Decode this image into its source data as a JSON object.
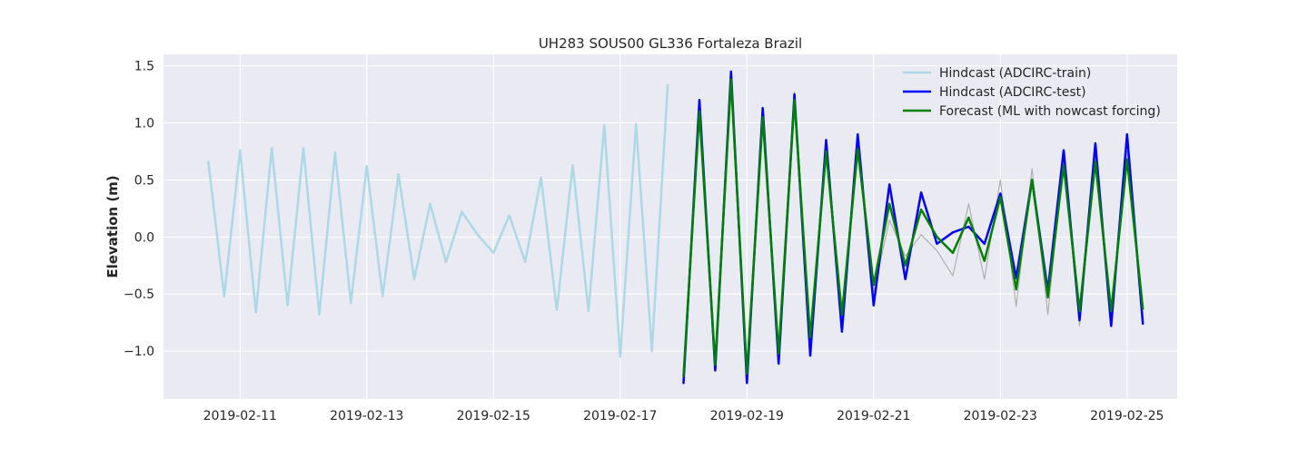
{
  "chart_data": {
    "type": "line",
    "title": "UH283 SOUS00 GL336 Fortaleza Brazil",
    "xlabel": "",
    "ylabel": "Elevation (m)",
    "xlim": [
      "2019-02-09 19:00",
      "2019-02-25 19:00"
    ],
    "ylim": [
      -1.42,
      1.6
    ],
    "x_ticks": [
      "2019-02-11",
      "2019-02-13",
      "2019-02-15",
      "2019-02-17",
      "2019-02-19",
      "2019-02-21",
      "2019-02-23",
      "2019-02-25"
    ],
    "y_ticks": [
      -1.0,
      -0.5,
      0.0,
      0.5,
      1.0,
      1.5
    ],
    "y_tick_labels": [
      "−1.0",
      "−0.5",
      "0.0",
      "0.5",
      "1.0",
      "1.5"
    ],
    "grid": true,
    "legend_position": "top-right",
    "series": [
      {
        "name": "Hindcast (ADCIRC-train)",
        "color": "#add8e6",
        "x": [
          "2019-02-10 12:00",
          "2019-02-10 18:00",
          "2019-02-11 00:00",
          "2019-02-11 06:00",
          "2019-02-11 12:00",
          "2019-02-11 18:00",
          "2019-02-12 00:00",
          "2019-02-12 06:00",
          "2019-02-12 12:00",
          "2019-02-12 18:00",
          "2019-02-13 00:00",
          "2019-02-13 06:00",
          "2019-02-13 12:00",
          "2019-02-13 18:00",
          "2019-02-14 00:00",
          "2019-02-14 06:00",
          "2019-02-14 12:00",
          "2019-02-14 18:00",
          "2019-02-15 00:00",
          "2019-02-15 06:00",
          "2019-02-15 12:00",
          "2019-02-15 18:00",
          "2019-02-16 00:00",
          "2019-02-16 06:00",
          "2019-02-16 12:00",
          "2019-02-16 18:00",
          "2019-02-17 00:00",
          "2019-02-17 06:00",
          "2019-02-17 12:00",
          "2019-02-17 18:00"
        ],
        "values": [
          0.66,
          -0.52,
          0.76,
          -0.66,
          0.78,
          -0.6,
          0.78,
          -0.68,
          0.74,
          -0.58,
          0.62,
          -0.52,
          0.55,
          -0.37,
          0.29,
          -0.22,
          0.22,
          0.02,
          -0.14,
          0.19,
          -0.22,
          0.52,
          -0.64,
          0.63,
          -0.65,
          0.98,
          -1.05,
          0.99,
          -1.0,
          1.33
        ]
      },
      {
        "name": "Hindcast (ADCIRC-test)",
        "color": "#0000ff",
        "x": [
          "2019-02-18 00:00",
          "2019-02-18 06:00",
          "2019-02-18 12:00",
          "2019-02-18 18:00",
          "2019-02-19 00:00",
          "2019-02-19 06:00",
          "2019-02-19 12:00",
          "2019-02-19 18:00",
          "2019-02-20 00:00",
          "2019-02-20 06:00",
          "2019-02-20 12:00",
          "2019-02-20 18:00",
          "2019-02-21 00:00",
          "2019-02-21 06:00",
          "2019-02-21 12:00",
          "2019-02-21 18:00",
          "2019-02-22 00:00",
          "2019-02-22 06:00",
          "2019-02-22 12:00",
          "2019-02-22 18:00",
          "2019-02-23 00:00",
          "2019-02-23 06:00",
          "2019-02-23 12:00",
          "2019-02-23 18:00",
          "2019-02-24 00:00",
          "2019-02-24 06:00",
          "2019-02-24 12:00",
          "2019-02-24 18:00",
          "2019-02-25 00:00",
          "2019-02-25 06:00"
        ],
        "values": [
          -1.28,
          1.2,
          -1.17,
          1.45,
          -1.28,
          1.13,
          -1.11,
          1.25,
          -1.04,
          0.85,
          -0.83,
          0.9,
          -0.6,
          0.46,
          -0.37,
          0.39,
          -0.06,
          0.04,
          0.09,
          -0.06,
          0.38,
          -0.36,
          0.5,
          -0.47,
          0.76,
          -0.73,
          0.82,
          -0.78,
          0.9,
          -0.76
        ]
      },
      {
        "name": "Forecast (ML with nowcast forcing)",
        "color": "#008000",
        "x": [
          "2019-02-18 00:00",
          "2019-02-18 06:00",
          "2019-02-18 12:00",
          "2019-02-18 18:00",
          "2019-02-19 00:00",
          "2019-02-19 06:00",
          "2019-02-19 12:00",
          "2019-02-19 18:00",
          "2019-02-20 00:00",
          "2019-02-20 06:00",
          "2019-02-20 12:00",
          "2019-02-20 18:00",
          "2019-02-21 00:00",
          "2019-02-21 06:00",
          "2019-02-21 12:00",
          "2019-02-21 18:00",
          "2019-02-22 00:00",
          "2019-02-22 06:00",
          "2019-02-22 12:00",
          "2019-02-22 18:00",
          "2019-02-23 00:00",
          "2019-02-23 06:00",
          "2019-02-23 12:00",
          "2019-02-23 18:00",
          "2019-02-24 00:00",
          "2019-02-24 06:00",
          "2019-02-24 12:00",
          "2019-02-24 18:00",
          "2019-02-25 00:00",
          "2019-02-25 06:00"
        ],
        "values": [
          -1.22,
          1.1,
          -1.12,
          1.38,
          -1.2,
          1.05,
          -1.02,
          1.2,
          -0.88,
          0.75,
          -0.68,
          0.77,
          -0.42,
          0.29,
          -0.25,
          0.24,
          0.0,
          -0.14,
          0.17,
          -0.21,
          0.35,
          -0.46,
          0.5,
          -0.53,
          0.63,
          -0.65,
          0.66,
          -0.65,
          0.68,
          -0.63
        ]
      },
      {
        "color": "#b0b0b0",
        "x": [
          "2019-02-18 00:00",
          "2019-02-18 06:00",
          "2019-02-18 12:00",
          "2019-02-18 18:00",
          "2019-02-19 00:00",
          "2019-02-19 06:00",
          "2019-02-19 12:00",
          "2019-02-19 18:00",
          "2019-02-20 00:00",
          "2019-02-20 06:00",
          "2019-02-20 12:00",
          "2019-02-20 18:00",
          "2019-02-21 00:00",
          "2019-02-21 06:00",
          "2019-02-21 12:00",
          "2019-02-21 18:00",
          "2019-02-22 00:00",
          "2019-02-22 06:00",
          "2019-02-22 12:00",
          "2019-02-22 18:00",
          "2019-02-23 00:00",
          "2019-02-23 06:00",
          "2019-02-23 12:00",
          "2019-02-23 18:00",
          "2019-02-24 00:00",
          "2019-02-24 06:00",
          "2019-02-24 12:00",
          "2019-02-24 18:00",
          "2019-02-25 00:00",
          "2019-02-25 06:00"
        ],
        "values": [
          -1.25,
          1.12,
          -1.14,
          1.4,
          -1.24,
          1.08,
          -1.05,
          1.27,
          -0.92,
          0.72,
          -0.72,
          0.75,
          -0.48,
          0.15,
          -0.17,
          0.02,
          -0.12,
          -0.34,
          0.29,
          -0.37,
          0.5,
          -0.61,
          0.6,
          -0.68,
          0.7,
          -0.78,
          0.73,
          -0.71,
          0.75,
          -0.7
        ]
      }
    ]
  }
}
